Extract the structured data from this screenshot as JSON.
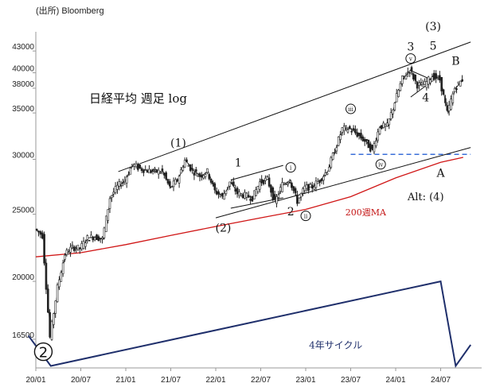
{
  "source": "(出所) Bloomberg",
  "chart_title": "日経平均 週足 log",
  "chart_data": {
    "type": "line",
    "title": "日経平均 週足 log",
    "scale": "log",
    "ylim": [
      15000,
      48000
    ],
    "y_ticks": [
      43000,
      40000,
      38000,
      35000,
      30000,
      25000,
      20000,
      16500
    ],
    "x_ticks": [
      "20/01",
      "20/07",
      "21/01",
      "21/07",
      "22/01",
      "22/07",
      "23/01",
      "23/07",
      "24/01",
      "24/07"
    ],
    "series": [
      {
        "name": "",
        "points": [
          [
            "2020-01",
            23800
          ],
          [
            "2020-02",
            23300
          ],
          [
            "2020-03",
            16600
          ],
          [
            "2020-04",
            19600
          ],
          [
            "2020-05",
            21900
          ],
          [
            "2020-06",
            22400
          ],
          [
            "2020-07",
            22300
          ],
          [
            "2020-08",
            23100
          ],
          [
            "2020-09",
            23200
          ],
          [
            "2020-10",
            23000
          ],
          [
            "2020-11",
            26400
          ],
          [
            "2020-12",
            27400
          ],
          [
            "2021-01",
            28000
          ],
          [
            "2021-02",
            29500
          ],
          [
            "2021-03",
            29100
          ],
          [
            "2021-04",
            28900
          ],
          [
            "2021-05",
            28800
          ],
          [
            "2021-06",
            28800
          ],
          [
            "2021-07",
            27300
          ],
          [
            "2021-08",
            28000
          ],
          [
            "2021-09",
            29900
          ],
          [
            "2021-10",
            28900
          ],
          [
            "2021-11",
            28400
          ],
          [
            "2021-12",
            28800
          ],
          [
            "2022-01",
            27000
          ],
          [
            "2022-02",
            26500
          ],
          [
            "2022-03",
            27800
          ],
          [
            "2022-04",
            26800
          ],
          [
            "2022-05",
            26600
          ],
          [
            "2022-06",
            26400
          ],
          [
            "2022-07",
            27800
          ],
          [
            "2022-08",
            28100
          ],
          [
            "2022-09",
            26000
          ],
          [
            "2022-10",
            27600
          ],
          [
            "2022-11",
            28000
          ],
          [
            "2022-12",
            26100
          ],
          [
            "2023-01",
            27300
          ],
          [
            "2023-02",
            27400
          ],
          [
            "2023-03",
            28000
          ],
          [
            "2023-04",
            28900
          ],
          [
            "2023-05",
            30900
          ],
          [
            "2023-06",
            33200
          ],
          [
            "2023-07",
            33200
          ],
          [
            "2023-08",
            32600
          ],
          [
            "2023-09",
            31900
          ],
          [
            "2023-10",
            30900
          ],
          [
            "2023-11",
            33500
          ],
          [
            "2023-12",
            33500
          ],
          [
            "2024-01",
            36300
          ],
          [
            "2024-02",
            39200
          ],
          [
            "2024-03",
            40400
          ],
          [
            "2024-04",
            38400
          ],
          [
            "2024-05",
            38500
          ],
          [
            "2024-06",
            39600
          ],
          [
            "2024-07",
            39100
          ],
          [
            "2024-08",
            35000
          ],
          [
            "2024-09",
            38000
          ],
          [
            "2024-10",
            39100
          ]
        ]
      },
      {
        "name": "200週MA",
        "points": [
          [
            "2020-01",
            21700
          ],
          [
            "2020-07",
            22000
          ],
          [
            "2021-01",
            22600
          ],
          [
            "2021-07",
            23300
          ],
          [
            "2022-01",
            24000
          ],
          [
            "2022-07",
            24700
          ],
          [
            "2023-01",
            25400
          ],
          [
            "2023-07",
            26500
          ],
          [
            "2024-01",
            28200
          ],
          [
            "2024-07",
            29700
          ],
          [
            "2024-10",
            30200
          ]
        ]
      },
      {
        "name": "4年サイクル",
        "points": [
          [
            "2019-12",
            16700
          ],
          [
            "2020-03",
            15100
          ],
          [
            "2024-07",
            20000
          ],
          [
            "2024-09",
            15100
          ],
          [
            "2024-11",
            16200
          ]
        ]
      }
    ],
    "reference_lines": [
      {
        "value": 30500,
        "from": "2023-07",
        "to": "2024-11",
        "style": "dashed"
      }
    ],
    "trendlines": [
      {
        "from": [
          "2020-12",
          28800
        ],
        "to": [
          "2024-11",
          44300
        ]
      },
      {
        "from": [
          "2022-01",
          24700
        ],
        "to": [
          "2024-11",
          31200
        ]
      },
      {
        "from": [
          "2022-03",
          28000
        ],
        "to": [
          "2022-10",
          29400
        ]
      },
      {
        "from": [
          "2022-03",
          25500
        ],
        "to": [
          "2022-10",
          26400
        ]
      },
      {
        "from": [
          "2024-03",
          40300
        ],
        "to": [
          "2024-06",
          39000
        ]
      },
      {
        "from": [
          "2024-03",
          36900
        ],
        "to": [
          "2024-06",
          39000
        ]
      }
    ],
    "annotations": [
      {
        "text": "(1)",
        "x": "2021-08",
        "y": 31300
      },
      {
        "text": "(2)",
        "x": "2022-02",
        "y": 23600
      },
      {
        "text": "(3)",
        "x": "2024-06",
        "y": 46100
      },
      {
        "text": "1",
        "x": "2022-04",
        "y": 29300
      },
      {
        "text": "2",
        "x": "2022-11",
        "y": 24900
      },
      {
        "text": "3",
        "x": "2024-03",
        "y": 43100
      },
      {
        "text": "4",
        "x": "2024-05",
        "y": 36400
      },
      {
        "text": "5",
        "x": "2024-06",
        "y": 43200
      },
      {
        "text": "A",
        "x": "2024-07",
        "y": 28300
      },
      {
        "text": "B",
        "x": "2024-09",
        "y": 41100
      },
      {
        "text": "Alt: (4)",
        "x": "2024-05",
        "y": 26200
      },
      {
        "text": "200週MA",
        "x": "2023-09",
        "y": 24900
      },
      {
        "text": "4年サイクル",
        "x": "2023-05",
        "y": 16000
      },
      {
        "text": "2",
        "x": "2020-02",
        "y": 15500
      },
      {
        "text": "i",
        "x": "2022-11",
        "y": 28900
      },
      {
        "text": "ii",
        "x": "2023-01",
        "y": 24600
      },
      {
        "text": "iii",
        "x": "2023-07",
        "y": 35100
      },
      {
        "text": "iv",
        "x": "2023-11",
        "y": 29200
      },
      {
        "text": "v",
        "x": "2024-03",
        "y": 41500
      }
    ]
  }
}
